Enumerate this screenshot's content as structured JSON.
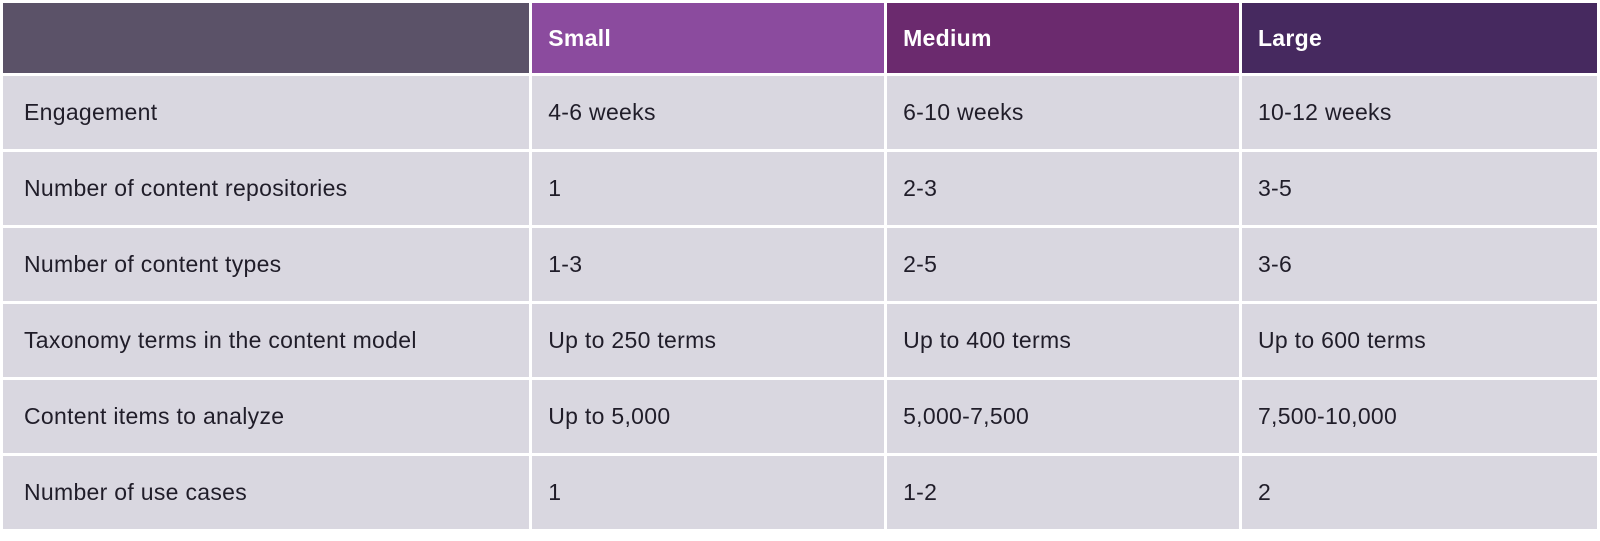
{
  "table": {
    "header": {
      "corner_label": "",
      "columns": [
        {
          "label": "Small"
        },
        {
          "label": "Medium"
        },
        {
          "label": "Large"
        }
      ]
    },
    "rows": [
      {
        "label": "Engagement",
        "values": [
          "4-6 weeks",
          "6-10 weeks",
          "10-12 weeks"
        ]
      },
      {
        "label": "Number of content repositories",
        "values": [
          "1",
          "2-3",
          "3-5"
        ]
      },
      {
        "label": "Number of content types",
        "values": [
          "1-3",
          "2-5",
          "3-6"
        ]
      },
      {
        "label": "Taxonomy terms in the content model",
        "values": [
          "Up to 250 terms",
          "Up to 400 terms",
          "Up to 600 terms"
        ]
      },
      {
        "label": "Content items to analyze",
        "values": [
          "Up to 5,000",
          "5,000-7,500",
          "7,500-10,000"
        ]
      },
      {
        "label": "Number of use cases",
        "values": [
          "1",
          "1-2",
          "2"
        ]
      }
    ],
    "colors": {
      "corner_header_bg": "#5b5268",
      "small_header_bg": "#8b4b9e",
      "medium_header_bg": "#6b2a6e",
      "large_header_bg": "#46295f",
      "body_cell_bg": "#d9d7e0",
      "header_text": "#ffffff",
      "body_text": "#201d29",
      "gutter": "#ffffff"
    }
  }
}
